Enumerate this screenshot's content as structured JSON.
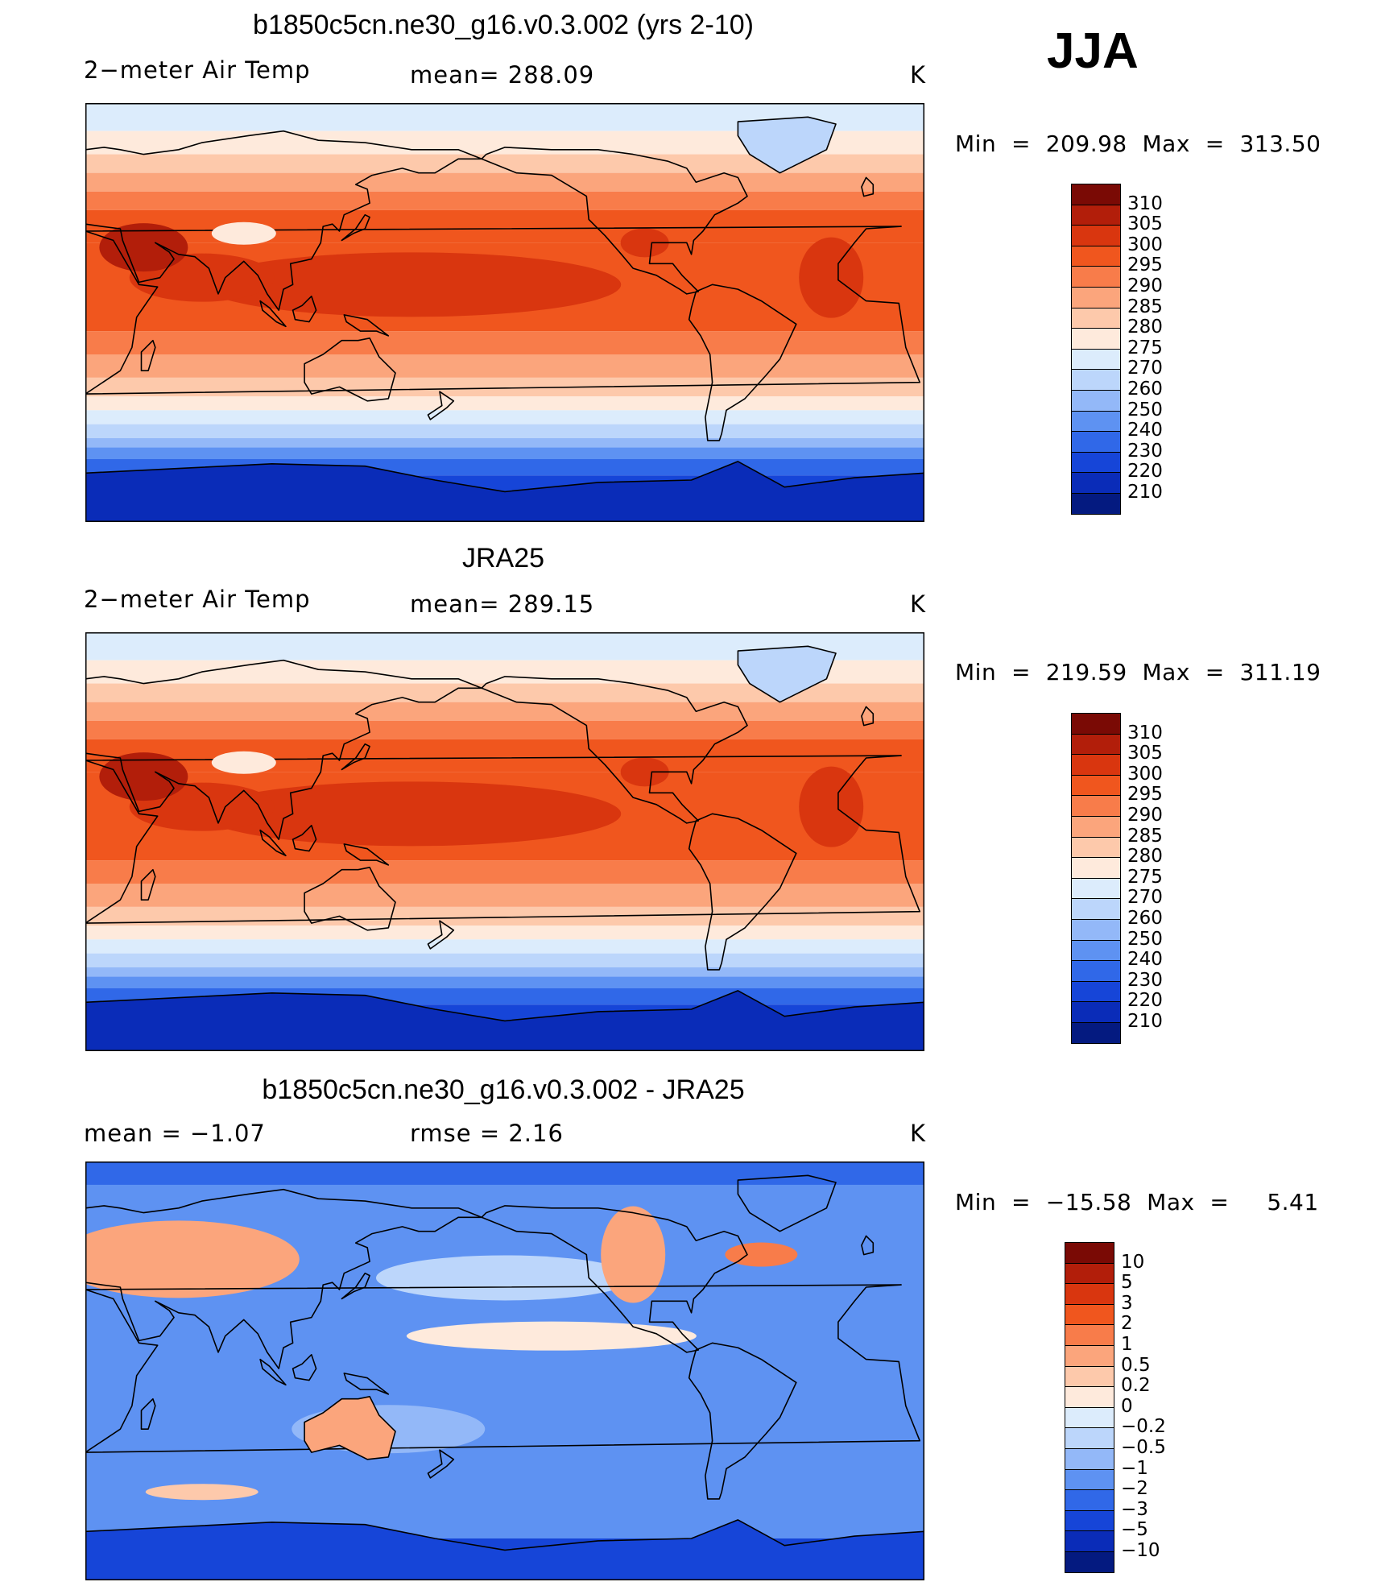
{
  "season_label": "JJA",
  "panels": [
    {
      "title": "b1850c5cn.ne30_g16.v0.3.002 (yrs 2-10)",
      "left_text": "2−meter Air Temp",
      "center_text": "mean=  288.09",
      "units": "K",
      "minmax_text": "Min  =  209.98  Max  =  313.50",
      "colorbar": {
        "labels": [
          "310",
          "305",
          "300",
          "295",
          "290",
          "285",
          "280",
          "275",
          "270",
          "260",
          "250",
          "240",
          "230",
          "220",
          "210"
        ],
        "colors": [
          "#7a0a05",
          "#b21e0a",
          "#d9360f",
          "#f0561e",
          "#f87c4a",
          "#fba57c",
          "#fdc9ab",
          "#feeadc",
          "#dcecfc",
          "#bcd6fb",
          "#93b8f8",
          "#5e92f2",
          "#3068e8",
          "#1645d8",
          "#0a2cb8",
          "#041a80"
        ]
      },
      "palette": "abs"
    },
    {
      "title": "JRA25",
      "left_text": "2−meter Air Temp",
      "center_text": "mean=  289.15",
      "units": "K",
      "minmax_text": "Min  =  219.59  Max  =  311.19",
      "colorbar": {
        "labels": [
          "310",
          "305",
          "300",
          "295",
          "290",
          "285",
          "280",
          "275",
          "270",
          "260",
          "250",
          "240",
          "230",
          "220",
          "210"
        ],
        "colors": [
          "#7a0a05",
          "#b21e0a",
          "#d9360f",
          "#f0561e",
          "#f87c4a",
          "#fba57c",
          "#fdc9ab",
          "#feeadc",
          "#dcecfc",
          "#bcd6fb",
          "#93b8f8",
          "#5e92f2",
          "#3068e8",
          "#1645d8",
          "#0a2cb8",
          "#041a80"
        ]
      },
      "palette": "abs"
    },
    {
      "title": "b1850c5cn.ne30_g16.v0.3.002 - JRA25",
      "left_text": "mean =    −1.07",
      "center_text": "rmse =     2.16",
      "units": "K",
      "minmax_text": "Min  =  −15.58  Max  =     5.41",
      "colorbar": {
        "labels": [
          "10",
          "5",
          "3",
          "2",
          "1",
          "0.5",
          "0.2",
          "0",
          "−0.2",
          "−0.5",
          "−1",
          "−2",
          "−3",
          "−5",
          "−10"
        ],
        "colors": [
          "#7a0a05",
          "#b21e0a",
          "#d9360f",
          "#f0561e",
          "#f87c4a",
          "#fba57c",
          "#fdc9ab",
          "#feeadc",
          "#dcecfc",
          "#bcd6fb",
          "#93b8f8",
          "#5e92f2",
          "#3068e8",
          "#1645d8",
          "#0a2cb8",
          "#041a80"
        ]
      },
      "palette": "diff"
    }
  ]
}
